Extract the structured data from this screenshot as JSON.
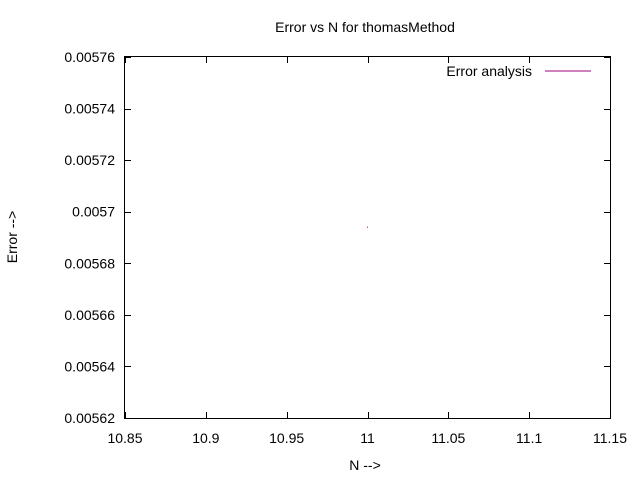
{
  "chart_data": {
    "type": "line",
    "title": "Error vs N for thomasMethod",
    "xlabel": "N -->",
    "ylabel": "Error -->",
    "xlim": [
      10.85,
      11.15
    ],
    "ylim": [
      0.00562,
      0.00576
    ],
    "x_ticks": [
      "10.85",
      "10.9",
      "10.95",
      "11",
      "11.05",
      "11.1",
      "11.15"
    ],
    "y_ticks": [
      "0.00562",
      "0.00564",
      "0.00566",
      "0.00568",
      "0.0057",
      "0.00572",
      "0.00574",
      "0.00576"
    ],
    "grid": false,
    "legend_position": "top-right",
    "series": [
      {
        "name": "Error analysis",
        "color": "#a0007a",
        "x": [
          11
        ],
        "y": [
          0.005694
        ]
      }
    ]
  }
}
